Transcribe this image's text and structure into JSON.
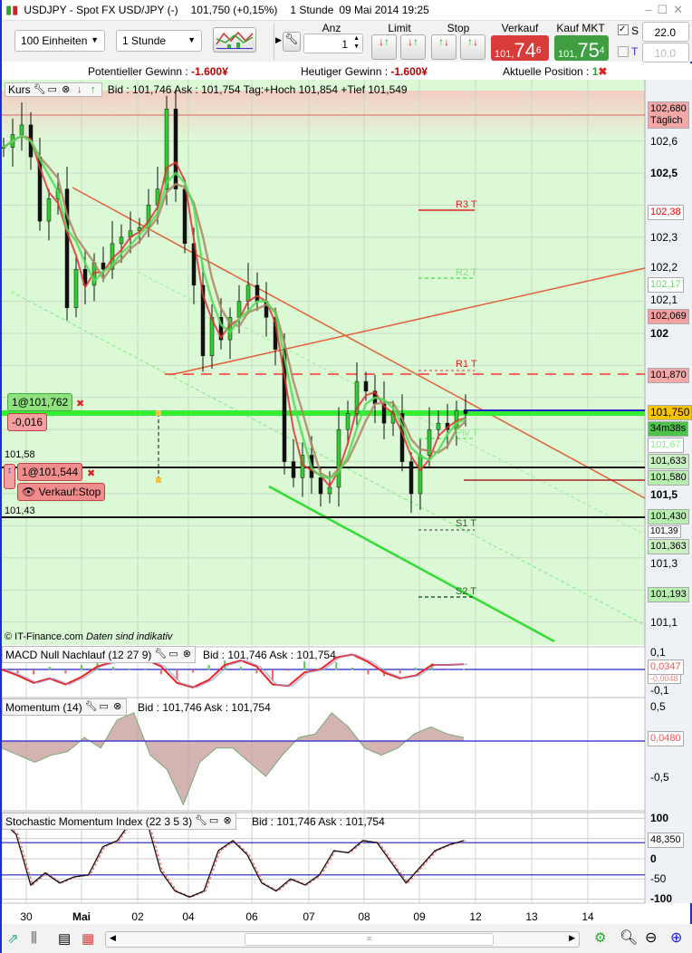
{
  "window": {
    "title": "USDJPY - Spot FX USD/JPY (-)",
    "price": "101,750 (+0,15%)",
    "timeframe": "1 Stunde",
    "datetime": "09 Mai 2014 19:25"
  },
  "toolbar": {
    "quantity_select": "100 Einheiten",
    "period_select": "1 Stunde",
    "anz_label": "Anz",
    "anz_value": "1",
    "limit_label": "Limit",
    "stop_label": "Stop",
    "sell_label": "Verkauf MKT",
    "buy_label": "Kauf MKT",
    "sell_price_prefix": "101,",
    "sell_price_big": "74",
    "sell_price_sup": "6",
    "buy_price_prefix": "101,",
    "buy_price_big": "75",
    "buy_price_sup": "4",
    "s_label": "S",
    "s_value": "22.0",
    "t_label": "T",
    "t_value": "10.0",
    "s_checked": true,
    "t_checked": false,
    "sell_color": "#d93a3a",
    "buy_color": "#3f9e3f"
  },
  "infobar": {
    "potential_label": "Potentieller Gewinn : ",
    "potential_value": "-1.600¥",
    "today_label": "Heutiger Gewinn : ",
    "today_value": "-1.600¥",
    "position_label": "Aktuelle Position : ",
    "position_value": "1"
  },
  "main": {
    "title": "Kurs",
    "quote": "Bid : 101,746 Ask : 101,754 Tag:+Hoch 101,854 +Tief 101,549",
    "copyright": "© IT-Finance.com",
    "disclaimer": "Daten sind indikativ",
    "axis_ticks": [
      "102,6",
      "102,5",
      "102,3",
      "102,2",
      "102,1",
      "102",
      "101,5",
      "101,3",
      "101,1"
    ],
    "tags": {
      "daily_high": "102,680",
      "daily_label": "Täglich",
      "r3": "102,38",
      "r2": "102,17",
      "level1": "102,069",
      "r1": "101,870",
      "current": "101,750",
      "countdown": "34m38s",
      "piv": "101,67",
      "level2": "101,633",
      "level3": "101,580",
      "s1_level": "101,430",
      "s1": "101,39",
      "level4": "101,363",
      "s2": "101,193"
    },
    "pivots": {
      "r3": "R3 T",
      "r2": "R2 T",
      "r1": "R1 T",
      "piv": "Piv T",
      "s1": "S1 T",
      "s2": "S2 T"
    },
    "left_levels": {
      "a": "101,58",
      "b": "101,43"
    },
    "orders": {
      "buy_order": "1@101,762",
      "buy_pl": "-0,016",
      "stop_order": "1@101,544",
      "stop_label": "Verkauf:Stop"
    }
  },
  "macd": {
    "title": "MACD Null Nachlauf (12 27 9)",
    "quote": "Bid : 101,746 Ask : 101,754",
    "ticks": [
      "0,1",
      "-0,1"
    ],
    "value": "0,0347",
    "value2": "-0,0048"
  },
  "momentum": {
    "title": "Momentum (14)",
    "quote": "Bid : 101,746 Ask : 101,754",
    "ticks": [
      "0,5",
      "-0,5"
    ],
    "value": "0,0480"
  },
  "smi": {
    "title": "Stochastic Momentum Index (22 3 5 3)",
    "quote": "Bid : 101,746 Ask : 101,754",
    "ticks": [
      "100",
      "0",
      "-50",
      "-100"
    ],
    "value": "48,350"
  },
  "date_axis": [
    "30",
    "Mai",
    "02",
    "04",
    "06",
    "07",
    "08",
    "09",
    "12",
    "13",
    "14"
  ],
  "chart_data": [
    {
      "type": "candlestick",
      "title": "Kurs",
      "approx_close": [
        102.58,
        102.62,
        102.65,
        102.55,
        102.35,
        102.42,
        102.45,
        102.08,
        102.2,
        102.15,
        102.22,
        102.2,
        102.28,
        102.3,
        102.32,
        102.33,
        102.4,
        102.45,
        102.7,
        102.45,
        102.28,
        102.15,
        101.93,
        102.05,
        101.98,
        102.05,
        102.1,
        102.15,
        102.1,
        102.05,
        101.95,
        101.6,
        101.55,
        101.62,
        101.55,
        101.5,
        101.52,
        101.7,
        101.75,
        101.85,
        101.82,
        101.78,
        101.72,
        101.75,
        101.6,
        101.5,
        101.62,
        101.7,
        101.72,
        101.7,
        101.76,
        101.75
      ],
      "ylim": [
        101.0,
        102.75
      ]
    },
    {
      "type": "line",
      "title": "MACD Null Nachlauf (12 27 9)",
      "approx_values": [
        0.0,
        -0.04,
        -0.09,
        -0.06,
        -0.1,
        -0.05,
        0.02,
        0.05,
        0.06,
        0.07,
        0.02,
        -0.09,
        -0.12,
        -0.07,
        0.03,
        0.06,
        0.02,
        -0.1,
        -0.11,
        -0.02,
        0.0,
        0.08,
        0.1,
        0.05,
        -0.02,
        -0.06,
        -0.04,
        0.03,
        0.03,
        0.035
      ],
      "ylim": [
        -0.15,
        0.12
      ]
    },
    {
      "type": "area",
      "title": "Momentum (14)",
      "approx_values": [
        -0.1,
        -0.2,
        -0.3,
        -0.2,
        -0.15,
        0.05,
        -0.1,
        0.3,
        0.4,
        -0.2,
        -0.4,
        -0.9,
        -0.3,
        -0.1,
        -0.1,
        -0.3,
        -0.5,
        -0.2,
        0.05,
        0.1,
        0.4,
        0.2,
        -0.1,
        -0.2,
        -0.1,
        0.1,
        0.2,
        0.1,
        0.05
      ],
      "ylim": [
        -0.9,
        0.55
      ]
    },
    {
      "type": "line",
      "title": "Stochastic Momentum Index (22 3 5 3)",
      "approx_values": [
        95,
        60,
        -65,
        -35,
        -60,
        -45,
        -40,
        30,
        45,
        95,
        100,
        -30,
        -80,
        -95,
        -80,
        20,
        45,
        10,
        -60,
        -80,
        -50,
        -65,
        -40,
        20,
        15,
        45,
        40,
        -10,
        -60,
        -20,
        20,
        35,
        45
      ],
      "ylim": [
        -100,
        100
      ]
    }
  ]
}
